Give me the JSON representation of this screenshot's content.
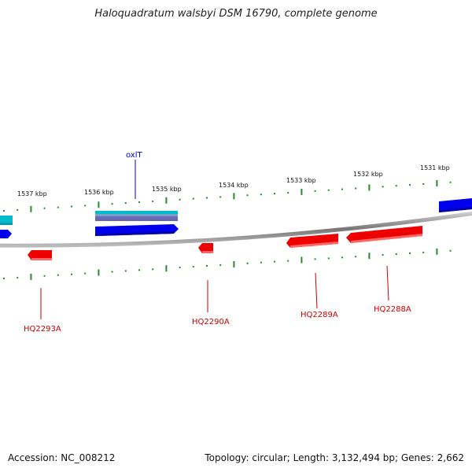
{
  "title": "Haloquadratum walsbyi DSM 16790, complete genome",
  "footer": {
    "accession": "Accession: NC_008212",
    "summary": "Topology: circular; Length: 3,132,494 bp; Genes: 2,662"
  },
  "ticks": [
    "1537 kbp",
    "1536 kbp",
    "1535 kbp",
    "1534 kbp",
    "1533 kbp",
    "1532 kbp",
    "1531 kbp"
  ],
  "genes": {
    "forward_label": "oxlT",
    "reverse_labels": [
      "HQ2293A",
      "HQ2290A",
      "HQ2289A",
      "HQ2288A"
    ]
  },
  "colors": {
    "forward": "#0000ee",
    "reverse": "#ee0000",
    "rna": "#00bbcc",
    "backbone": "#888888",
    "tick": "#2a8a2a"
  }
}
